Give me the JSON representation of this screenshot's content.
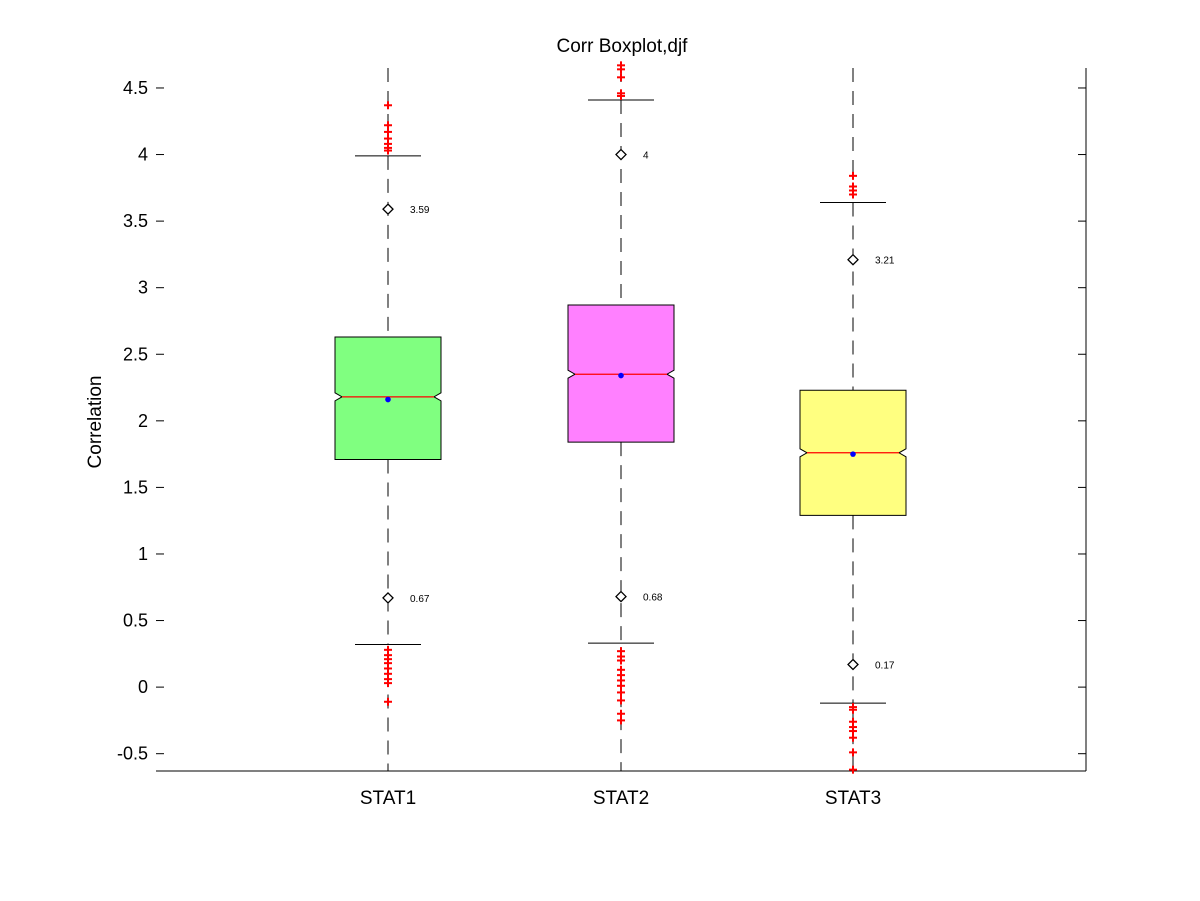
{
  "chart_data": {
    "type": "boxplot",
    "title": "Corr Boxplot,djf",
    "ylabel": "Correlation",
    "xlabel": "",
    "ylim": [
      -0.63,
      4.65
    ],
    "yticks": [
      -0.5,
      0,
      0.5,
      1,
      1.5,
      2,
      2.5,
      3,
      3.5,
      4,
      4.5
    ],
    "ytick_labels": [
      "-0.5",
      "0",
      "0.5",
      "1",
      "1.5",
      "2",
      "2.5",
      "3",
      "3.5",
      "4",
      "4.5"
    ],
    "categories": [
      "STAT1",
      "STAT2",
      "STAT3"
    ],
    "notched": true,
    "grid": false,
    "colors": {
      "boxes": [
        "#80ff80",
        "#ff80ff",
        "#ffff80"
      ],
      "median": "#ff0000",
      "mean": "#0000ff",
      "outlier": "#ff0000",
      "line": "#000000"
    },
    "boxes": [
      {
        "name": "STAT1",
        "q1": 1.71,
        "median": 2.18,
        "q3": 2.63,
        "notch_low": 2.15,
        "notch_high": 2.21,
        "whisker_low": 0.32,
        "whisker_high": 3.99,
        "mean": 2.16,
        "marker_high": 3.59,
        "marker_low": 0.67,
        "marker_high_label": "3.59",
        "marker_low_label": "0.67",
        "outliers_high": [
          4.03,
          4.05,
          4.08,
          4.12,
          4.17,
          4.22,
          4.37
        ],
        "outliers_low": [
          -0.11,
          0.03,
          0.06,
          0.1,
          0.14,
          0.18,
          0.21,
          0.24,
          0.28
        ]
      },
      {
        "name": "STAT2",
        "q1": 1.84,
        "median": 2.35,
        "q3": 2.87,
        "notch_low": 2.32,
        "notch_high": 2.38,
        "whisker_low": 0.33,
        "whisker_high": 4.41,
        "mean": 2.34,
        "marker_high": 4.0,
        "marker_low": 0.68,
        "marker_high_label": "4",
        "marker_low_label": "0.68",
        "outliers_high": [
          4.44,
          4.46,
          4.58,
          4.64,
          4.67
        ],
        "outliers_low": [
          -0.25,
          -0.2,
          -0.1,
          -0.04,
          0.01,
          0.05,
          0.09,
          0.13,
          0.2,
          0.23,
          0.27
        ]
      },
      {
        "name": "STAT3",
        "q1": 1.29,
        "median": 1.76,
        "q3": 2.23,
        "notch_low": 1.73,
        "notch_high": 1.79,
        "whisker_low": -0.12,
        "whisker_high": 3.64,
        "mean": 1.75,
        "marker_high": 3.21,
        "marker_low": 0.17,
        "marker_high_label": "3.21",
        "marker_low_label": "0.17",
        "outliers_high": [
          3.7,
          3.73,
          3.76,
          3.84
        ],
        "outliers_low": [
          -0.62,
          -0.49,
          -0.38,
          -0.33,
          -0.3,
          -0.26,
          -0.17,
          -0.15
        ]
      }
    ]
  }
}
